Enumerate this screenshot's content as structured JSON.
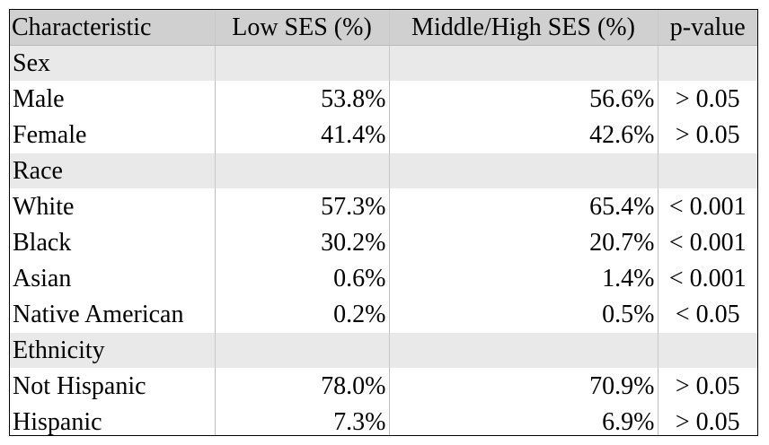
{
  "headers": [
    "Characteristic",
    "Low SES (%)",
    "Middle/High SES (%)",
    "p-value"
  ],
  "rows": [
    {
      "type": "section",
      "label": "Sex",
      "low": "",
      "mid": "",
      "p": ""
    },
    {
      "type": "data",
      "label": "Male",
      "low": "53.8%",
      "mid": "56.6%",
      "p": "> 0.05"
    },
    {
      "type": "data",
      "label": "Female",
      "low": "41.4%",
      "mid": "42.6%",
      "p": "> 0.05"
    },
    {
      "type": "section",
      "label": "Race",
      "low": "",
      "mid": "",
      "p": ""
    },
    {
      "type": "data",
      "label": "White",
      "low": "57.3%",
      "mid": "65.4%",
      "p": "< 0.001"
    },
    {
      "type": "data",
      "label": "Black",
      "low": "30.2%",
      "mid": "20.7%",
      "p": "< 0.001"
    },
    {
      "type": "data",
      "label": "Asian",
      "low": "0.6%",
      "mid": "1.4%",
      "p": "< 0.001"
    },
    {
      "type": "data",
      "label": "Native American",
      "low": "0.2%",
      "mid": "0.5%",
      "p": "< 0.05"
    },
    {
      "type": "section",
      "label": "Ethnicity",
      "low": "",
      "mid": "",
      "p": ""
    },
    {
      "type": "data",
      "label": "Not Hispanic",
      "low": "78.0%",
      "mid": "70.9%",
      "p": "> 0.05"
    },
    {
      "type": "data",
      "label": "Hispanic",
      "low": "7.3%",
      "mid": "6.9%",
      "p": "> 0.05"
    }
  ],
  "colors": {
    "header_bg": "#d0d0d0",
    "section_bg": "#e9e9e9",
    "row_bg": "#ffffff",
    "border": "#000000"
  }
}
